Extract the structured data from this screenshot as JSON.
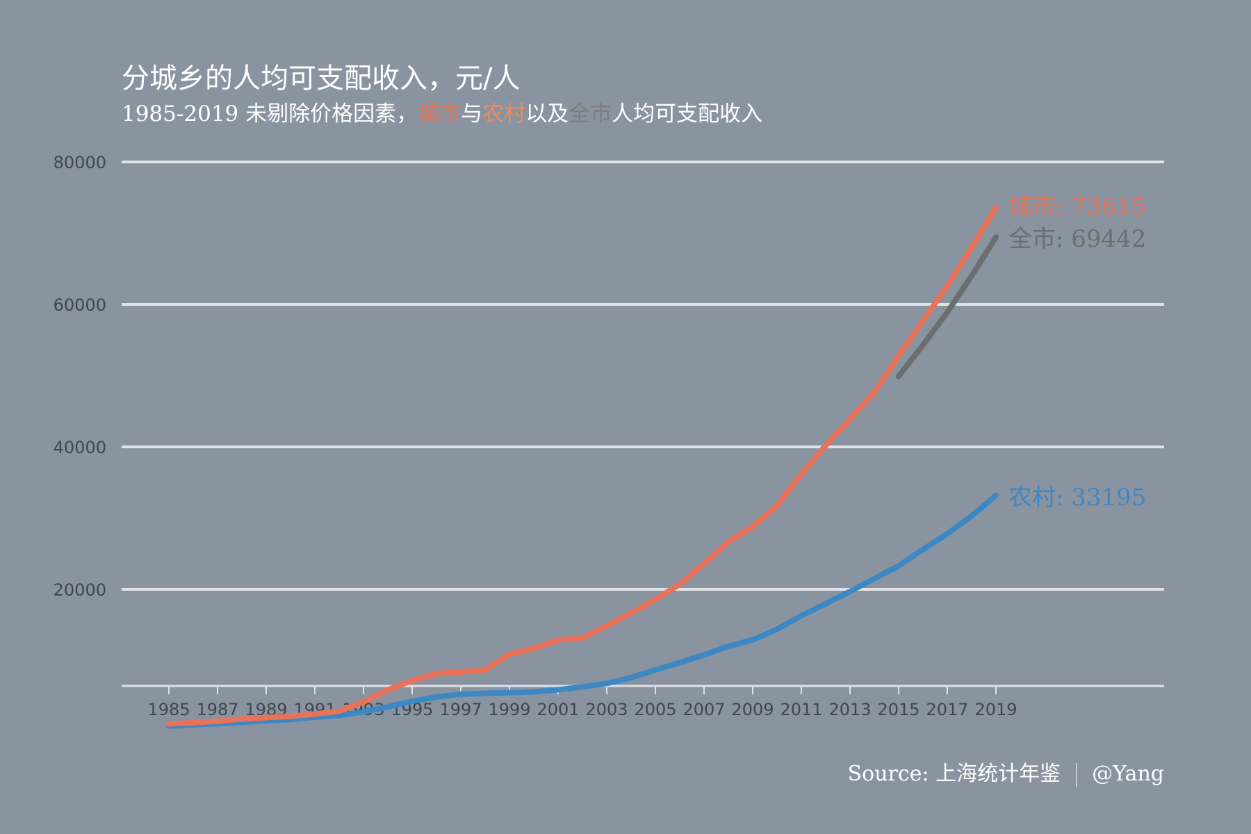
{
  "colors": {
    "background": "#8994a0",
    "city": "#e8735a",
    "rural": "#3d88c4",
    "whole": "#6b6e70",
    "grid": "#dfe2e6",
    "tick_text": "#40464d",
    "subtitle_city": "#e8735a",
    "subtitle_rural": "#f08a5d",
    "subtitle_whole": "#7b7e80"
  },
  "chart_data": {
    "type": "line",
    "title": "分城乡的人均可支配收入，元/人",
    "subtitle": {
      "prefix": "1985-2019 未剔除价格因素，",
      "city": "城市",
      "and": "与",
      "rural": "农村",
      "with": "以及",
      "whole": "全市",
      "suffix": "人均可支配收入"
    },
    "xlim": [
      1985,
      2019
    ],
    "ylim": [
      0,
      80000
    ],
    "x_ticks": [
      1985,
      1987,
      1989,
      1991,
      1993,
      1995,
      1997,
      1999,
      2001,
      2003,
      2005,
      2007,
      2009,
      2011,
      2013,
      2015,
      2017,
      2019
    ],
    "y_ticks": [
      20000,
      40000,
      60000,
      80000
    ],
    "grid": "horizontal",
    "series": [
      {
        "key": "city",
        "name": "城市",
        "end_label": "城市: 73615",
        "x": [
          1985,
          1986,
          1987,
          1988,
          1989,
          1990,
          1991,
          1992,
          1993,
          1994,
          1995,
          1996,
          1997,
          1998,
          1999,
          2000,
          2001,
          2002,
          2003,
          2004,
          2005,
          2006,
          2007,
          2008,
          2009,
          2010,
          2011,
          2012,
          2013,
          2014,
          2015,
          2016,
          2017,
          2018,
          2019
        ],
        "values": [
          1100,
          1300,
          1500,
          1800,
          2000,
          2200,
          2500,
          2900,
          4200,
          5900,
          7200,
          8200,
          8400,
          8700,
          10900,
          11700,
          12900,
          13200,
          14900,
          16700,
          18600,
          20700,
          23600,
          26700,
          28800,
          31800,
          36200,
          40200,
          43900,
          47700,
          52800,
          57700,
          62600,
          68000,
          73615
        ]
      },
      {
        "key": "rural",
        "name": "农村",
        "end_label": "农村: 33195",
        "x": [
          1985,
          1986,
          1987,
          1988,
          1989,
          1990,
          1991,
          1992,
          1993,
          1994,
          1995,
          1996,
          1997,
          1998,
          1999,
          2000,
          2001,
          2002,
          2003,
          2004,
          2005,
          2006,
          2007,
          2008,
          2009,
          2010,
          2011,
          2012,
          2013,
          2014,
          2015,
          2016,
          2017,
          2018,
          2019
        ],
        "values": [
          800,
          1000,
          1150,
          1350,
          1550,
          1750,
          2050,
          2300,
          2800,
          3500,
          4300,
          4900,
          5300,
          5400,
          5500,
          5600,
          5900,
          6300,
          6800,
          7600,
          8700,
          9700,
          10800,
          12000,
          12900,
          14400,
          16300,
          18000,
          19700,
          21500,
          23300,
          25600,
          27800,
          30300,
          33195
        ]
      },
      {
        "key": "whole",
        "name": "全市",
        "end_label": "全市: 69442",
        "x": [
          2015,
          2016,
          2017,
          2018,
          2019
        ],
        "values": [
          49900,
          54300,
          58900,
          64000,
          69442
        ]
      }
    ]
  },
  "source": {
    "text": "Source: 上海统计年鉴",
    "author": "@Yang"
  }
}
